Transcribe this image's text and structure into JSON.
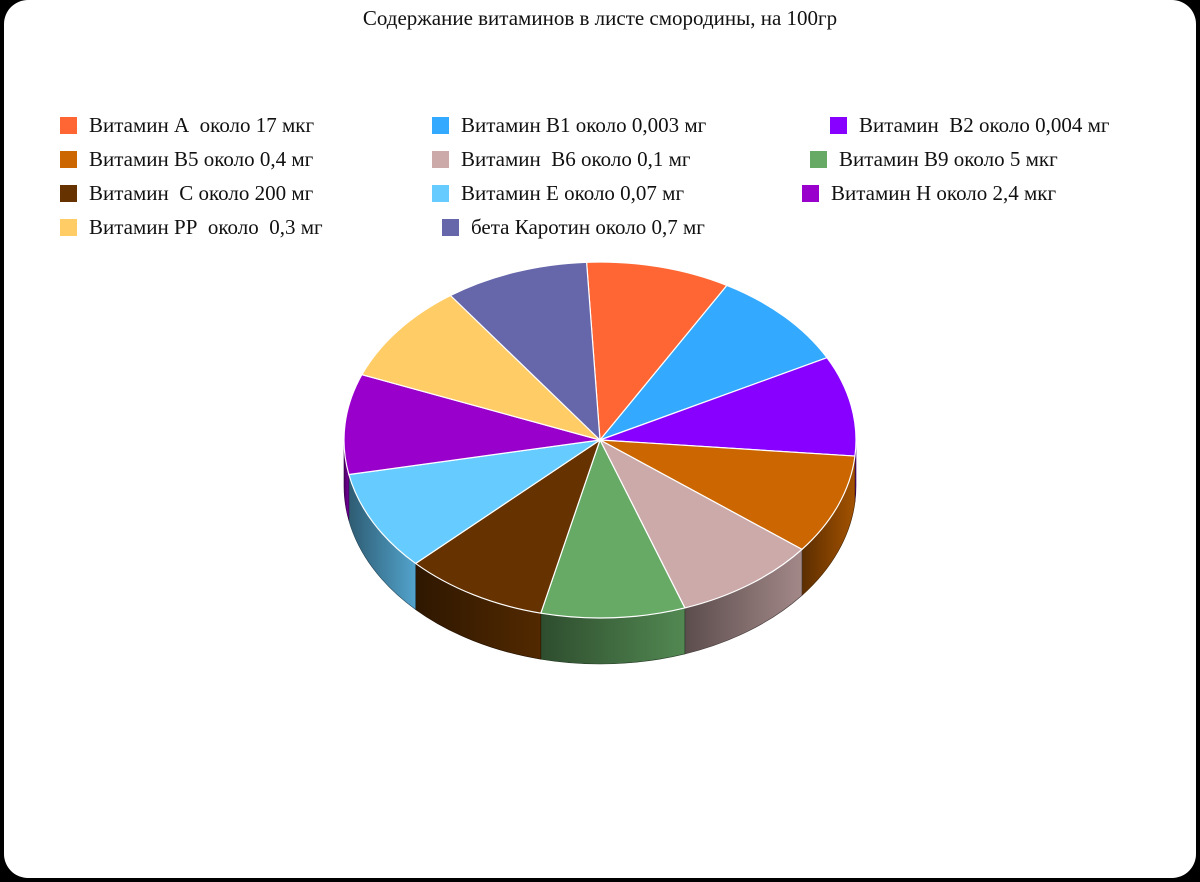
{
  "chart_data": {
    "type": "pie",
    "title": "Содержание витаминов в листе смородины, на 100гр",
    "three_d": true,
    "legend_position": "top",
    "slices": [
      {
        "label": "Витамин А  около 17 мкг",
        "value": 1,
        "color": "#ff6633"
      },
      {
        "label": "Витамин В1 около 0,003 мг",
        "value": 1,
        "color": "#33aaff"
      },
      {
        "label": "Витамин  В2 около 0,004 мг",
        "value": 1,
        "color": "#8800ff"
      },
      {
        "label": "Витамин В5 около 0,4 мг",
        "value": 1,
        "color": "#cc6600"
      },
      {
        "label": "Витамин  В6 около 0,1 мг",
        "value": 1,
        "color": "#ccaaaa"
      },
      {
        "label": "Витамин В9 около 5 мкг",
        "value": 1,
        "color": "#66aa66"
      },
      {
        "label": "Витамин  С около 200 мг",
        "value": 1,
        "color": "#663300"
      },
      {
        "label": "Витамин Е около 0,07 мг",
        "value": 1,
        "color": "#66ccff"
      },
      {
        "label": "Витамин Н около 2,4 мкг",
        "value": 1,
        "color": "#9900cc"
      },
      {
        "label": "Витамин РР  около  0,3 мг",
        "value": 1,
        "color": "#ffcc66"
      },
      {
        "label": "бета Каротин около 0,7 мг",
        "value": 1,
        "color": "#6666aa"
      }
    ]
  }
}
